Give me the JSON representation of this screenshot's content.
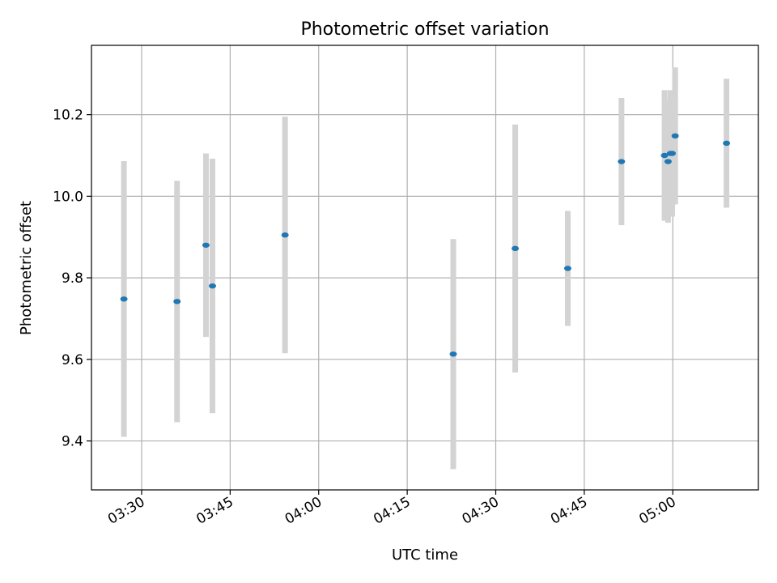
{
  "chart_data": {
    "type": "scatter",
    "title": "Photometric offset variation",
    "xlabel": "UTC time",
    "ylabel": "Photometric offset",
    "x_ticks": [
      "03:30",
      "03:45",
      "04:00",
      "04:15",
      "04:30",
      "04:45",
      "05:00"
    ],
    "x_tick_minutes": [
      210,
      225,
      240,
      255,
      270,
      285,
      300
    ],
    "xlim_minutes": [
      201.5,
      314.5
    ],
    "y_ticks": [
      "9.4",
      "9.6",
      "9.8",
      "10.0",
      "10.2"
    ],
    "y_tick_values": [
      9.4,
      9.6,
      9.8,
      10.0,
      10.2
    ],
    "ylim": [
      9.28,
      10.37
    ],
    "grid": true,
    "colors": {
      "point": "#1f77b4",
      "errorbar": "#d3d3d3"
    },
    "points": [
      {
        "time": "03:27:00",
        "t": 207.0,
        "y": 9.748,
        "err": 0.338
      },
      {
        "time": "03:36:00",
        "t": 216.0,
        "y": 9.742,
        "err": 0.296
      },
      {
        "time": "03:40:54",
        "t": 220.9,
        "y": 9.88,
        "err": 0.225
      },
      {
        "time": "03:42:00",
        "t": 222.0,
        "y": 9.78,
        "err": 0.312
      },
      {
        "time": "03:54:18",
        "t": 234.3,
        "y": 9.905,
        "err": 0.29
      },
      {
        "time": "04:22:48",
        "t": 262.8,
        "y": 9.613,
        "err": 0.282
      },
      {
        "time": "04:33:18",
        "t": 273.3,
        "y": 9.872,
        "err": 0.304
      },
      {
        "time": "04:42:12",
        "t": 282.2,
        "y": 9.823,
        "err": 0.141
      },
      {
        "time": "04:51:18",
        "t": 291.3,
        "y": 10.085,
        "err": 0.156
      },
      {
        "time": "04:58:36",
        "t": 298.6,
        "y": 10.1,
        "err": 0.16
      },
      {
        "time": "04:59:12",
        "t": 299.2,
        "y": 10.085,
        "err": 0.15
      },
      {
        "time": "04:59:36",
        "t": 299.6,
        "y": 10.105,
        "err": 0.155
      },
      {
        "time": "04:59:54",
        "t": 299.9,
        "y": 10.105,
        "err": 0.155
      },
      {
        "time": "05:00:24",
        "t": 300.4,
        "y": 10.148,
        "err": 0.168
      },
      {
        "time": "05:09:06",
        "t": 309.1,
        "y": 10.13,
        "err": 0.158
      }
    ]
  }
}
